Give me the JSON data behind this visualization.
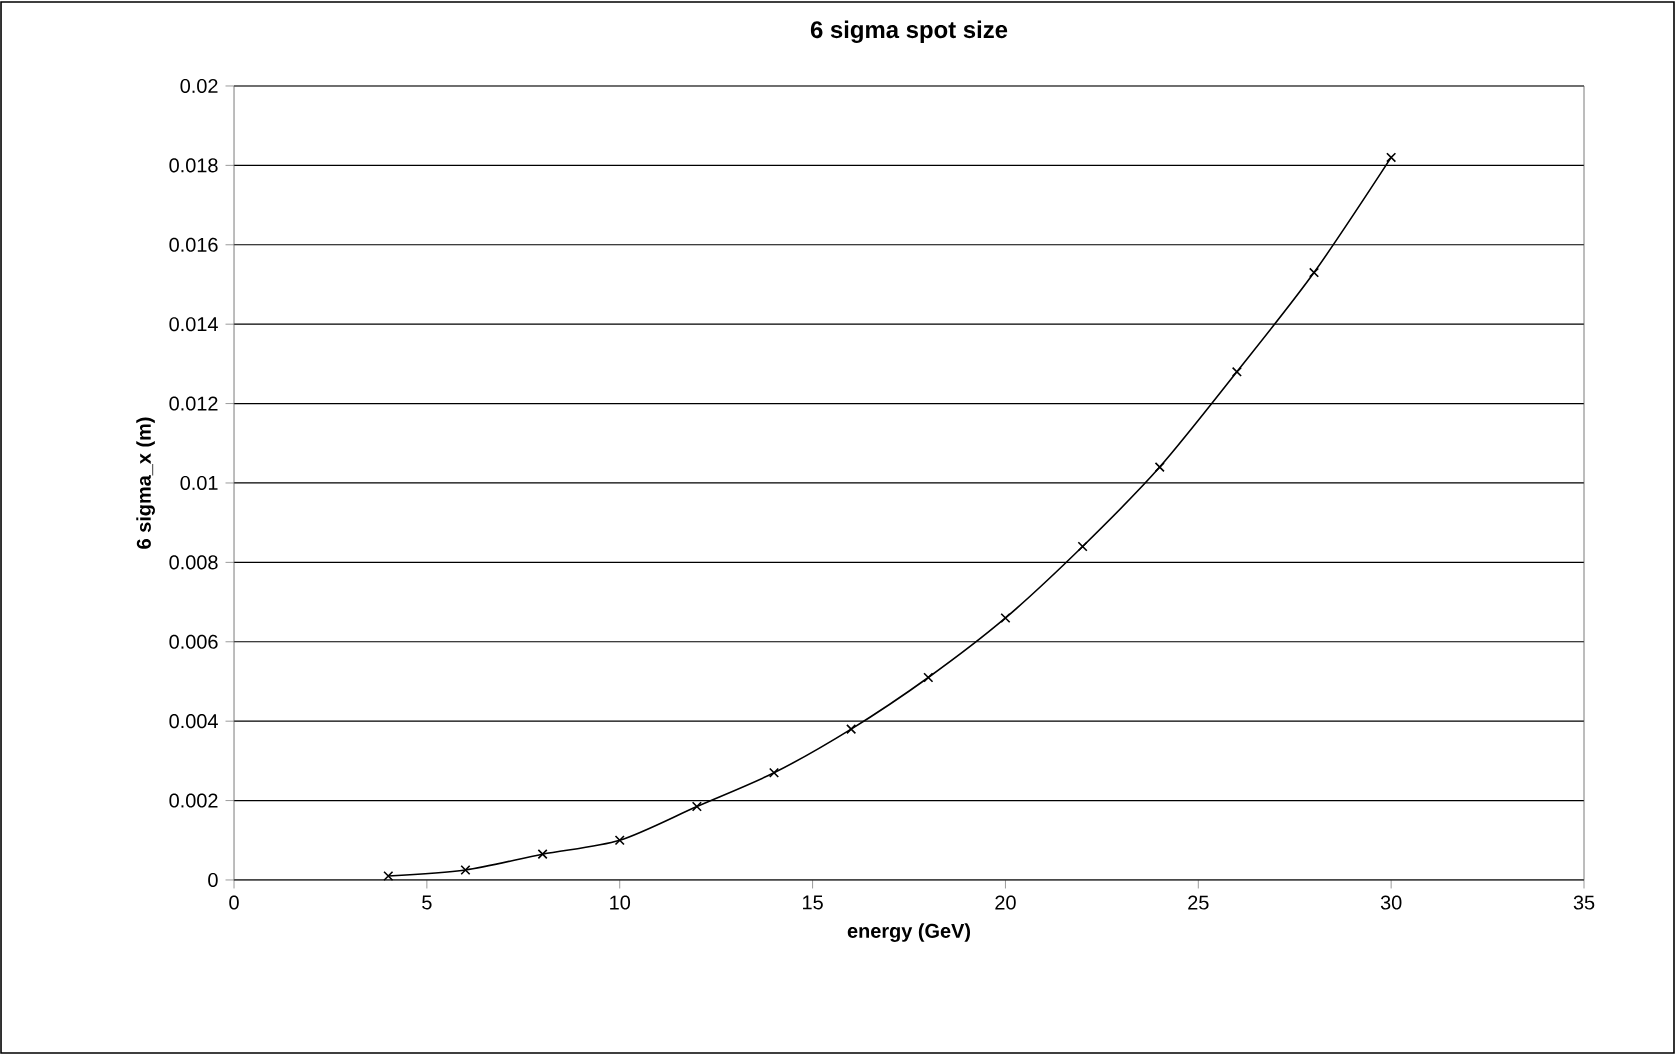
{
  "chart_data": {
    "type": "line",
    "title": "6 sigma spot size",
    "xlabel": "energy (GeV)",
    "ylabel": "6 sigma_x (m)",
    "x": [
      4,
      6,
      8,
      10,
      12,
      14,
      16,
      18,
      20,
      22,
      24,
      26,
      28,
      30
    ],
    "series": [
      {
        "color": "#000000",
        "values": [
          0.0001,
          0.00025,
          0.00065,
          0.001,
          0.00185,
          0.0027,
          0.0038,
          0.0051,
          0.0066,
          0.0084,
          0.0104,
          0.0128,
          0.0153,
          0.0182
        ]
      }
    ],
    "xlim": [
      0,
      35
    ],
    "xticks": [
      0,
      5,
      10,
      15,
      20,
      25,
      30,
      35
    ],
    "ylim": [
      0,
      0.02
    ],
    "yticks": [
      0,
      0.002,
      0.004,
      0.006,
      0.008,
      0.01,
      0.012,
      0.014,
      0.016,
      0.018,
      0.02
    ],
    "grid": "y",
    "marker": "cross",
    "line_style": "solid"
  }
}
